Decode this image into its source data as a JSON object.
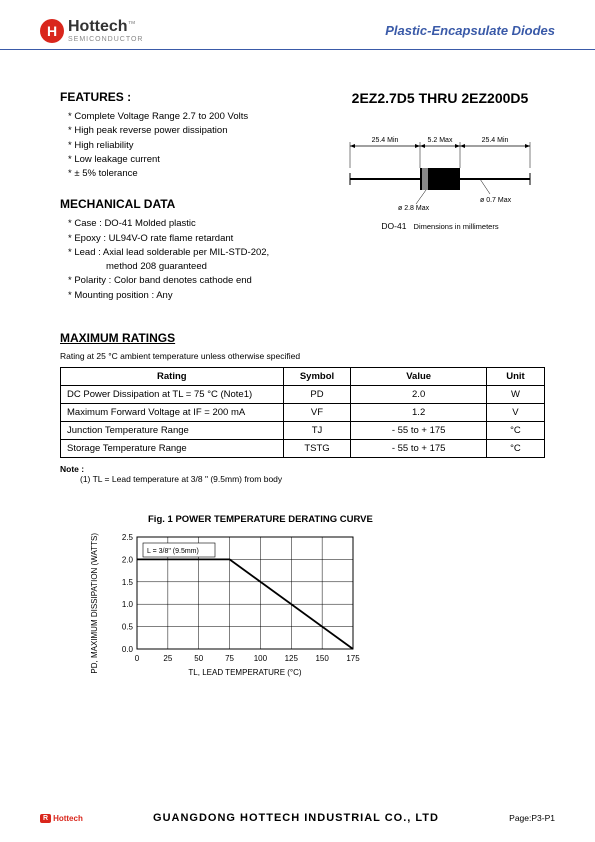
{
  "header": {
    "brand": "Hottech",
    "tm": "™",
    "sub": "SEMICONDUCTOR",
    "category": "Plastic-Encapsulate Diodes",
    "logo_h": "H"
  },
  "part_title": "2EZ2.7D5 THRU 2EZ200D5",
  "features": {
    "heading": "FEATURES :",
    "items": [
      "Complete Voltage Range 2.7 to 200 Volts",
      "High peak reverse power dissipation",
      "High reliability",
      "Low leakage current",
      "± 5% tolerance"
    ]
  },
  "mechanical": {
    "heading": "MECHANICAL DATA",
    "items": [
      "Case : DO-41 Molded plastic",
      "Epoxy : UL94V-O rate flame retardant",
      "Lead : Axial lead solderable per MIL-STD-202,",
      "method 208 guaranteed",
      "Polarity : Color band denotes cathode end",
      "Mounting position : Any"
    ]
  },
  "dimensions": {
    "d1": "25.4 Min",
    "d2": "5.2 Max",
    "d3": "25.4 Min",
    "d4": "ø 2.8 Max",
    "d5": "ø 0.7 Max",
    "package": "DO-41",
    "unit_text": "Dimensions in millimeters"
  },
  "ratings": {
    "heading": "MAXIMUM RATINGS",
    "subhead": "Rating at 25 °C ambient temperature unless otherwise specified",
    "columns": [
      "Rating",
      "Symbol",
      "Value",
      "Unit"
    ],
    "rows": [
      [
        "DC Power Dissipation at TL = 75 °C (Note1)",
        "PD",
        "2.0",
        "W"
      ],
      [
        "Maximum Forward Voltage at IF = 200 mA",
        "VF",
        "1.2",
        "V"
      ],
      [
        "Junction Temperature Range",
        "TJ",
        "- 55 to + 175",
        "°C"
      ],
      [
        "Storage Temperature Range",
        "TSTG",
        "- 55 to + 175",
        "°C"
      ]
    ],
    "note_label": "Note :",
    "note_text": "(1) TL = Lead temperature at 3/8 \" (9.5mm) from body"
  },
  "chart": {
    "title": "Fig. 1  POWER TEMPERATURE DERATING CURVE",
    "ylabel": "PD, MAXIMUM DISSIPATION\n(WATTS)",
    "xlabel": "TL, LEAD TEMPERATURE (°C)",
    "xlim": [
      0,
      175
    ],
    "ylim": [
      0,
      2.5
    ],
    "xticks": [
      0,
      25,
      50,
      75,
      100,
      125,
      150,
      175
    ],
    "yticks": [
      0,
      0.5,
      1.0,
      1.5,
      2.0,
      2.5
    ],
    "line_points": [
      [
        0,
        2.0
      ],
      [
        75,
        2.0
      ],
      [
        175,
        0
      ]
    ],
    "legend": "L = 3/8\" (9.5mm)",
    "grid_color": "#000000",
    "line_color": "#000000",
    "line_width": 1.8,
    "background": "#ffffff"
  },
  "footer": {
    "logo_text": "Hottech",
    "company": "GUANGDONG   HOTTECH   INDUSTRIAL   CO., LTD",
    "page": "Page:P3-P1"
  }
}
